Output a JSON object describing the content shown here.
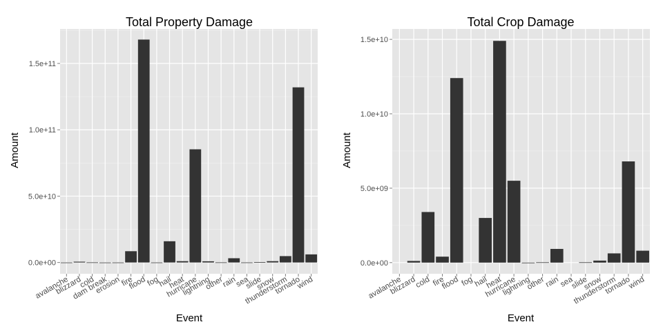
{
  "chart_data": [
    {
      "type": "bar",
      "title": "Total Property Damage",
      "xlabel": "Event",
      "ylabel": "Amount",
      "categories": [
        "avalanche",
        "blizzard",
        "cold",
        "dam break",
        "erosion",
        "fire",
        "flood",
        "fog",
        "hail",
        "heat",
        "hurricane",
        "lightning",
        "other",
        "rain",
        "sea",
        "slide",
        "snow",
        "thunderstorm",
        "tornado",
        "wind"
      ],
      "values": [
        8000000,
        600000000,
        100000000,
        1000000,
        20000000,
        8500000000,
        168000000000,
        25000000,
        16000000000,
        1000000000,
        85300000000,
        900000000,
        100000000,
        3200000000,
        50000000,
        300000000,
        1000000000,
        4800000000,
        132000000000,
        6100000000
      ],
      "yticks": [
        "0.0e+00",
        "5.0e+10",
        "1.0e+11",
        "1.5e+11"
      ],
      "ytick_values": [
        0,
        50000000000,
        100000000000,
        150000000000
      ],
      "ylim": [
        -8500000000,
        176000000000
      ],
      "grid": true,
      "bar_color": "#333333",
      "panel_color": "#e5e5e5"
    },
    {
      "type": "bar",
      "title": "Total Crop Damage",
      "xlabel": "Event",
      "ylabel": "Amount",
      "categories": [
        "avalanche",
        "blizzard",
        "cold",
        "fire",
        "flood",
        "fog",
        "hail",
        "heat",
        "hurricane",
        "lightning",
        "other",
        "rain",
        "sea",
        "slide",
        "snow",
        "thunderstorm",
        "tornado",
        "wind"
      ],
      "values": [
        0,
        112000000,
        3400000000,
        400000000,
        12400000000,
        0,
        3000000000,
        14900000000,
        5500000000,
        12000,
        20000000,
        920000000,
        0,
        20000000,
        135000000,
        620000000,
        6800000000,
        800000000
      ],
      "yticks": [
        "0.0e+00",
        "5.0e+09",
        "1.0e+10",
        "1.5e+10"
      ],
      "ytick_values": [
        0,
        5000000000,
        10000000000,
        15000000000
      ],
      "ylim": [
        -750000000,
        15700000000
      ],
      "grid": true,
      "bar_color": "#333333",
      "panel_color": "#e5e5e5"
    }
  ]
}
